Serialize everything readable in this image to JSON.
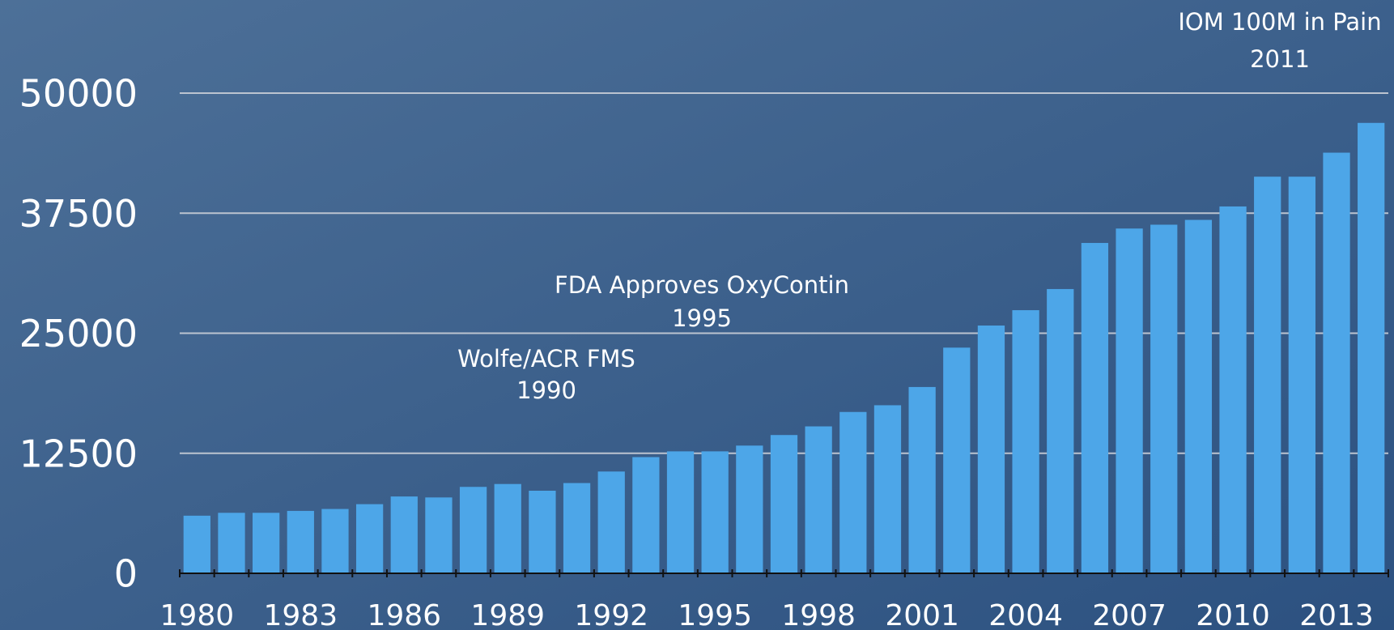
{
  "chart_data": {
    "type": "bar",
    "categories": [
      "1980",
      null,
      null,
      "1983",
      null,
      null,
      "1986",
      null,
      null,
      "1989",
      null,
      null,
      "1992",
      null,
      null,
      "1995",
      null,
      null,
      "1998",
      null,
      null,
      "2001",
      null,
      null,
      "2004",
      null,
      null,
      "2007",
      null,
      null,
      "2010",
      null,
      null,
      "2013",
      null
    ],
    "values": [
      6000,
      6300,
      6300,
      6500,
      6700,
      7200,
      8000,
      7900,
      9000,
      9300,
      8600,
      9400,
      10600,
      12100,
      12700,
      12700,
      13300,
      14400,
      15300,
      16800,
      17500,
      19400,
      23500,
      25800,
      27400,
      29600,
      34400,
      35900,
      36300,
      36800,
      38200,
      41300,
      41300,
      43800,
      46900
    ],
    "color": "#4da6e8",
    "ylim": [
      0,
      50000
    ],
    "yticks": [
      0,
      12500,
      25000,
      37500,
      50000
    ],
    "grid": true,
    "annotations": [
      {
        "lines": [
          "IOM 100M in Pain",
          "2011"
        ]
      },
      {
        "lines": [
          "FDA Approves OxyContin",
          "1995"
        ]
      },
      {
        "lines": [
          "Wolfe/ACR FMS",
          "1990"
        ]
      }
    ]
  }
}
